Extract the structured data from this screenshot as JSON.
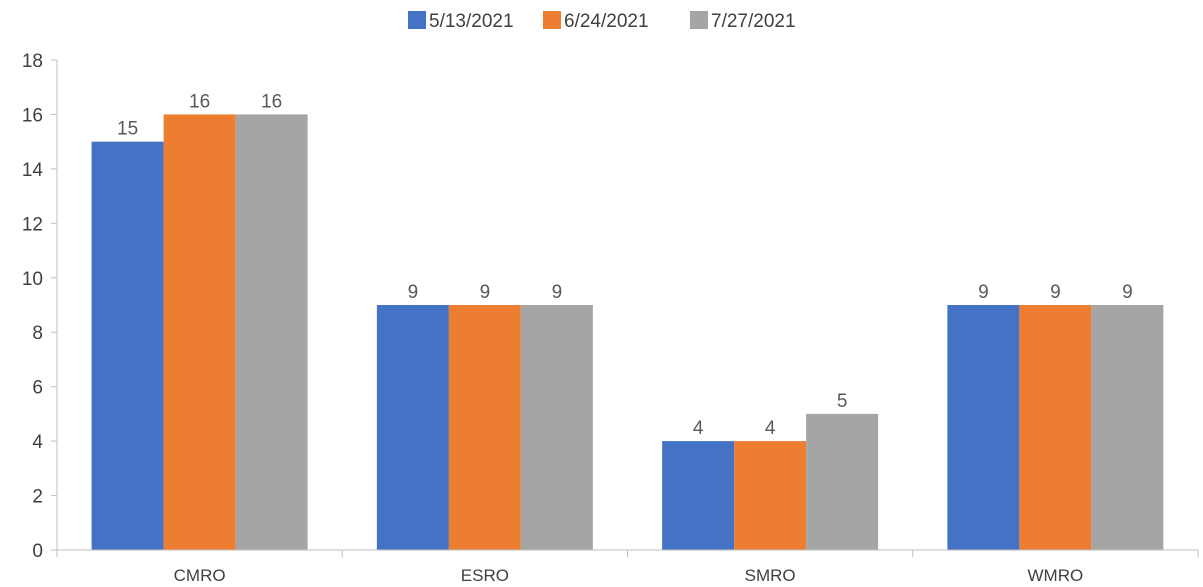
{
  "chart_data": {
    "type": "bar",
    "categories": [
      "CMRO",
      "ESRO",
      "SMRO",
      "WMRO"
    ],
    "series": [
      {
        "name": "5/13/2021",
        "values": [
          15,
          9,
          4,
          9
        ],
        "color": "#4472C4"
      },
      {
        "name": "6/24/2021",
        "values": [
          16,
          9,
          4,
          9
        ],
        "color": "#ED7D31"
      },
      {
        "name": "7/27/2021",
        "values": [
          16,
          9,
          5,
          9
        ],
        "color": "#A5A5A5"
      }
    ],
    "ylim": [
      0,
      18
    ],
    "yticks": [
      0,
      2,
      4,
      6,
      8,
      10,
      12,
      14,
      16,
      18
    ],
    "grid": false,
    "legend": "top-center",
    "data_labels": true,
    "axis_color": "#BFBFBF"
  }
}
